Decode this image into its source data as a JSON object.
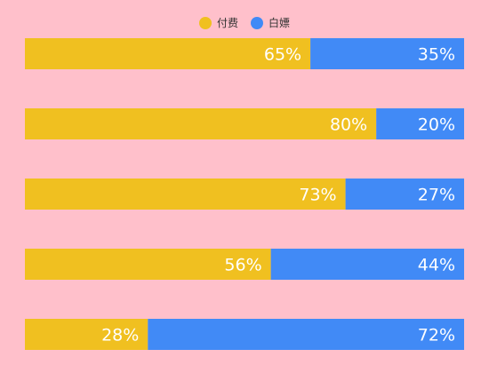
{
  "chart_data": {
    "type": "bar",
    "orientation": "horizontal",
    "stacked": true,
    "normalized_percent": true,
    "legend_position": "top-center",
    "grid": false,
    "categories": [
      "",
      "",
      "",
      "",
      ""
    ],
    "series": [
      {
        "name": "付费",
        "color": "#f0c020",
        "values": [
          65,
          80,
          73,
          56,
          28
        ],
        "labels": [
          "65%",
          "80%",
          "73%",
          "56%",
          "28%"
        ]
      },
      {
        "name": "白嫖",
        "color": "#418af6",
        "values": [
          35,
          20,
          27,
          44,
          72
        ],
        "labels": [
          "35%",
          "20%",
          "27%",
          "44%",
          "72%"
        ]
      }
    ],
    "xlim": [
      0,
      100
    ]
  }
}
